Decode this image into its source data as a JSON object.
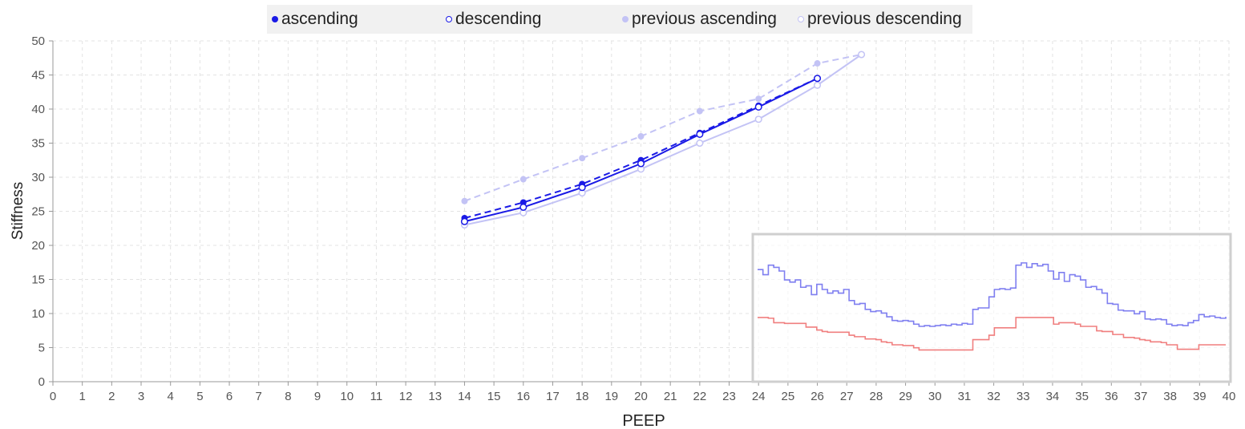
{
  "chart_data": {
    "type": "line",
    "xlabel": "PEEP",
    "ylabel": "Stiffness",
    "xlim": [
      0,
      40
    ],
    "ylim": [
      0,
      50
    ],
    "x_ticks": [
      0,
      1,
      2,
      3,
      4,
      5,
      6,
      7,
      8,
      9,
      10,
      11,
      12,
      13,
      14,
      15,
      16,
      17,
      18,
      19,
      20,
      21,
      22,
      23,
      24,
      25,
      26,
      27,
      28,
      29,
      30,
      31,
      32,
      33,
      34,
      35,
      36,
      37,
      38,
      39,
      40
    ],
    "y_ticks": [
      0,
      5,
      10,
      15,
      20,
      25,
      30,
      35,
      40,
      45,
      50
    ],
    "grid": true,
    "legend_position": "top-center",
    "series": [
      {
        "name": "ascending",
        "color": "#1a1ae6",
        "style": "dashed",
        "marker": "filled",
        "x": [
          14,
          16,
          18,
          20,
          22,
          24,
          26
        ],
        "y": [
          24.0,
          26.3,
          29.0,
          32.5,
          36.5,
          40.5,
          44.5
        ]
      },
      {
        "name": "descending",
        "color": "#1a1ae6",
        "style": "solid",
        "marker": "open",
        "x": [
          14,
          16,
          18,
          20,
          22,
          24,
          26
        ],
        "y": [
          23.5,
          25.6,
          28.5,
          32.0,
          36.3,
          40.3,
          44.5
        ]
      },
      {
        "name": "previous ascending",
        "color": "#c3c3f5",
        "style": "dashed",
        "marker": "filled",
        "x": [
          14,
          16,
          18,
          20,
          22,
          24,
          26,
          27.5
        ],
        "y": [
          26.5,
          29.7,
          32.8,
          36.0,
          39.7,
          41.5,
          46.7,
          48.0
        ]
      },
      {
        "name": "previous descending",
        "color": "#c3c3f5",
        "style": "solid",
        "marker": "open",
        "x": [
          14,
          16,
          18,
          20,
          22,
          24,
          26,
          27.5
        ],
        "y": [
          23.0,
          24.8,
          27.7,
          31.2,
          35.0,
          38.5,
          43.5,
          48.0
        ]
      }
    ],
    "inset": {
      "type": "line",
      "series": [
        {
          "color": "#7f7ff0",
          "values": [
            15.2,
            14.5,
            15.8,
            15.5,
            15.0,
            13.8,
            13.5,
            13.8,
            12.8,
            13.0,
            11.8,
            13.2,
            12.5,
            12.0,
            12.3,
            12.0,
            12.5,
            11.0,
            10.5,
            10.6,
            9.8,
            9.5,
            9.6,
            9.3,
            8.8,
            8.3,
            8.2,
            8.3,
            8.2,
            7.8,
            7.5,
            7.6,
            7.5,
            7.6,
            7.7,
            7.6,
            7.8,
            7.7,
            7.9,
            7.8,
            9.8,
            10.0,
            10.0,
            11.5,
            12.5,
            12.6,
            12.5,
            12.7,
            15.8,
            16.1,
            15.5,
            16.0,
            15.7,
            15.9,
            15.0,
            13.9,
            14.8,
            13.6,
            14.5,
            14.3,
            13.8,
            12.8,
            12.9,
            12.5,
            12.0,
            10.6,
            10.5,
            9.7,
            9.6,
            9.6,
            9.2,
            9.5,
            8.5,
            8.4,
            8.5,
            8.4,
            7.8,
            7.6,
            7.7,
            7.6,
            8.0,
            8.3,
            9.1,
            8.8,
            8.9,
            8.7,
            8.6,
            8.8
          ]
        },
        {
          "color": "#f07f7f",
          "values": [
            8.7,
            8.7,
            8.6,
            8.0,
            8.0,
            7.9,
            7.9,
            7.9,
            7.9,
            7.4,
            7.4,
            7.0,
            6.8,
            6.7,
            6.7,
            6.7,
            6.7,
            6.3,
            6.1,
            6.1,
            5.8,
            5.8,
            5.7,
            5.4,
            5.3,
            5.0,
            5.0,
            4.9,
            4.9,
            4.6,
            4.3,
            4.3,
            4.3,
            4.3,
            4.3,
            4.3,
            4.3,
            4.3,
            4.3,
            4.3,
            5.7,
            5.7,
            5.7,
            6.3,
            7.3,
            7.3,
            7.3,
            7.3,
            8.7,
            8.7,
            8.7,
            8.7,
            8.7,
            8.7,
            8.7,
            7.8,
            8.0,
            8.0,
            8.0,
            7.8,
            7.5,
            7.5,
            7.5,
            6.9,
            6.8,
            6.8,
            6.4,
            6.4,
            6.0,
            6.0,
            5.9,
            5.7,
            5.6,
            5.4,
            5.4,
            5.3,
            5.0,
            5.0,
            4.4,
            4.4,
            4.4,
            4.4,
            5.0,
            5.0,
            5.0,
            5.0,
            5.0,
            5.0
          ]
        }
      ]
    }
  }
}
